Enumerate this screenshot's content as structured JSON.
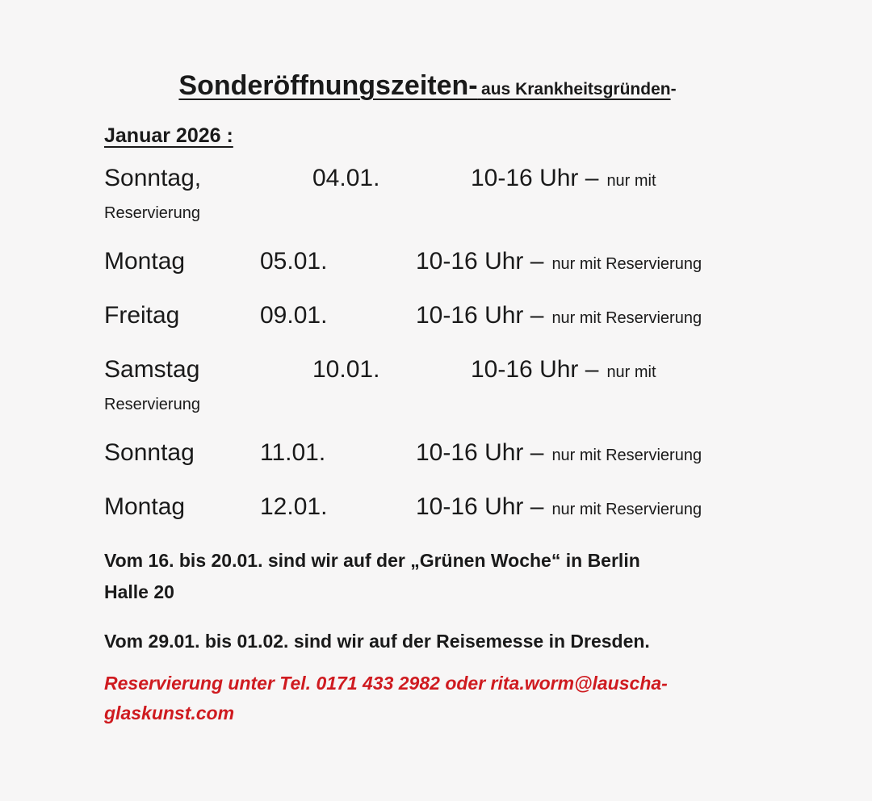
{
  "page": {
    "background_color": "#f7f6f6",
    "text_color": "#1a1a1a",
    "accent_red": "#cf1b20"
  },
  "title": {
    "main": "Sonderöffnungszeiten-",
    "sub": "aus Krankheitsgründen",
    "trailing_dash": "-"
  },
  "section_heading": "Januar 2026 :",
  "schedule": {
    "rows": [
      {
        "day": "Sonntag,",
        "date": "04.01.",
        "time": "10-16 Uhr –",
        "note": "nur mit",
        "note_wrap": "Reservierung"
      },
      {
        "day": "Montag",
        "date": "05.01.",
        "time": "10-16 Uhr –",
        "note": "nur mit Reservierung"
      },
      {
        "day": "Freitag",
        "date": "09.01.",
        "time": "10-16 Uhr –",
        "note": "nur mit Reservierung"
      },
      {
        "day": "Samstag",
        "date": "10.01.",
        "time": "10-16 Uhr –",
        "note": "nur mit",
        "note_wrap": "Reservierung"
      },
      {
        "day": "Sonntag",
        "date": "11.01.",
        "time": "10-16 Uhr –",
        "note": "nur mit Reservierung"
      },
      {
        "day": "Montag",
        "date": "12.01.",
        "time": "10-16 Uhr –",
        "note": "nur mit Reservierung"
      }
    ]
  },
  "announcements": [
    {
      "line1": "Vom 16. bis 20.01. sind wir auf der „Grünen Woche“ in Berlin",
      "line2": "Halle 20"
    },
    {
      "line1": "Vom 29.01. bis 01.02. sind wir auf der Reisemesse in Dresden."
    }
  ],
  "reservation_contact": {
    "line1": "Reservierung unter Tel. 0171 433 2982 oder rita.worm@lauscha-",
    "line2": "glaskunst.com"
  }
}
